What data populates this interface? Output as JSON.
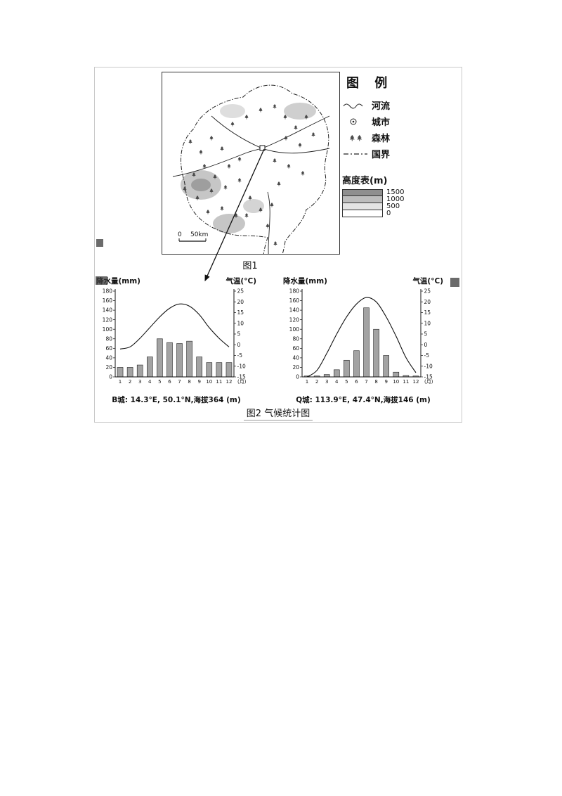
{
  "page": {
    "fig1_caption": "图1",
    "fig2_caption": "图2 气候统计图"
  },
  "legend": {
    "title": "图 例",
    "items": [
      {
        "id": "river",
        "label": "河流"
      },
      {
        "id": "city",
        "label": "城市"
      },
      {
        "id": "forest",
        "label": "森林"
      },
      {
        "id": "border",
        "label": "国界"
      }
    ],
    "elevation": {
      "title": "高度表(m)",
      "levels": [
        "1500",
        "1000",
        "500",
        "0"
      ],
      "colors": [
        "#8f8f8f",
        "#bdbdbd",
        "#e4e4e4",
        "#ffffff"
      ]
    }
  },
  "map": {
    "scale_zero": "0",
    "scale_label": "50km"
  },
  "chart_data": [
    {
      "type": "bar+line",
      "city_label": "B城: 14.3°E, 50.1°N,海拔364 (m)",
      "precip_label": "降水量(mm)",
      "temp_label": "气温(°C)",
      "months": [
        "1",
        "2",
        "3",
        "4",
        "5",
        "6",
        "7",
        "8",
        "9",
        "10",
        "11",
        "12"
      ],
      "month_unit": "(月)",
      "precip_mm": [
        20,
        20,
        25,
        42,
        80,
        72,
        70,
        75,
        42,
        30,
        30,
        30
      ],
      "temp_c": [
        -2,
        -1,
        3,
        8,
        13,
        17,
        19,
        18,
        14,
        8,
        3,
        -1
      ],
      "precip_axis": {
        "min": 0,
        "max": 180,
        "step": 20
      },
      "temp_axis": {
        "min": -15,
        "max": 25,
        "step": 5
      },
      "legend_position": "none",
      "grid": false
    },
    {
      "type": "bar+line",
      "city_label": "Q城: 113.9°E, 47.4°N,海拔146 (m)",
      "precip_label": "降水量(mm)",
      "temp_label": "气温(°C)",
      "months": [
        "1",
        "2",
        "3",
        "4",
        "5",
        "6",
        "7",
        "8",
        "9",
        "10",
        "11",
        "12"
      ],
      "month_unit": "(月)",
      "precip_mm": [
        2,
        2,
        5,
        15,
        35,
        55,
        145,
        100,
        45,
        10,
        3,
        2
      ],
      "temp_c": [
        -15,
        -12,
        -4,
        5,
        13,
        19,
        22,
        20,
        13,
        4,
        -6,
        -13
      ],
      "precip_axis": {
        "min": 0,
        "max": 180,
        "step": 20
      },
      "temp_axis": {
        "min": -15,
        "max": 25,
        "step": 5
      },
      "legend_position": "none",
      "grid": false
    }
  ]
}
